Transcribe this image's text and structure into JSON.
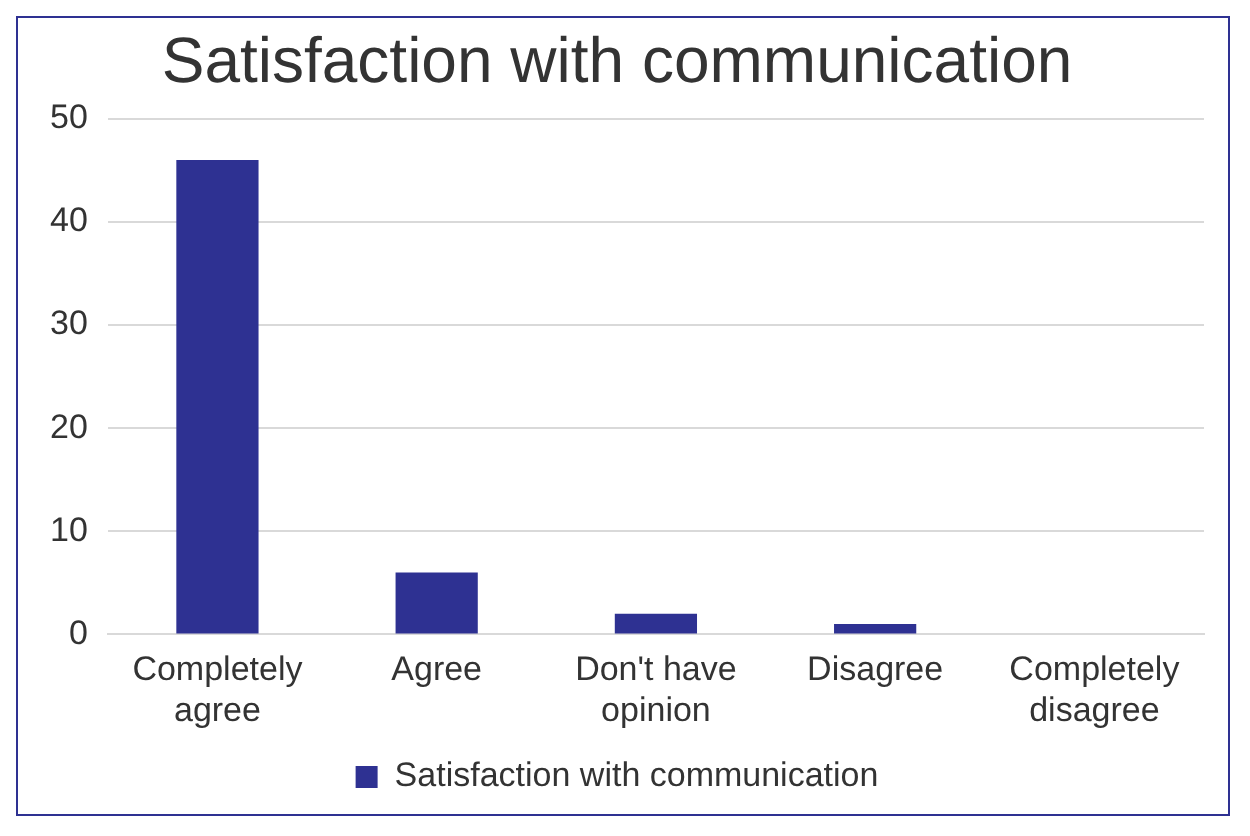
{
  "chart_data": {
    "type": "bar",
    "title": "Satisfaction with communication",
    "categories": [
      "Completely agree",
      "Agree",
      "Don't have opinion",
      "Disagree",
      "Completely disagree"
    ],
    "series": [
      {
        "name": "Satisfaction with communication",
        "color": "#2e3192",
        "values": [
          46,
          6,
          2,
          1,
          0
        ]
      }
    ],
    "ylim": [
      0,
      50
    ],
    "yticks": [
      0,
      10,
      20,
      30,
      40,
      50
    ],
    "grid": "y",
    "legend": "bottom"
  }
}
